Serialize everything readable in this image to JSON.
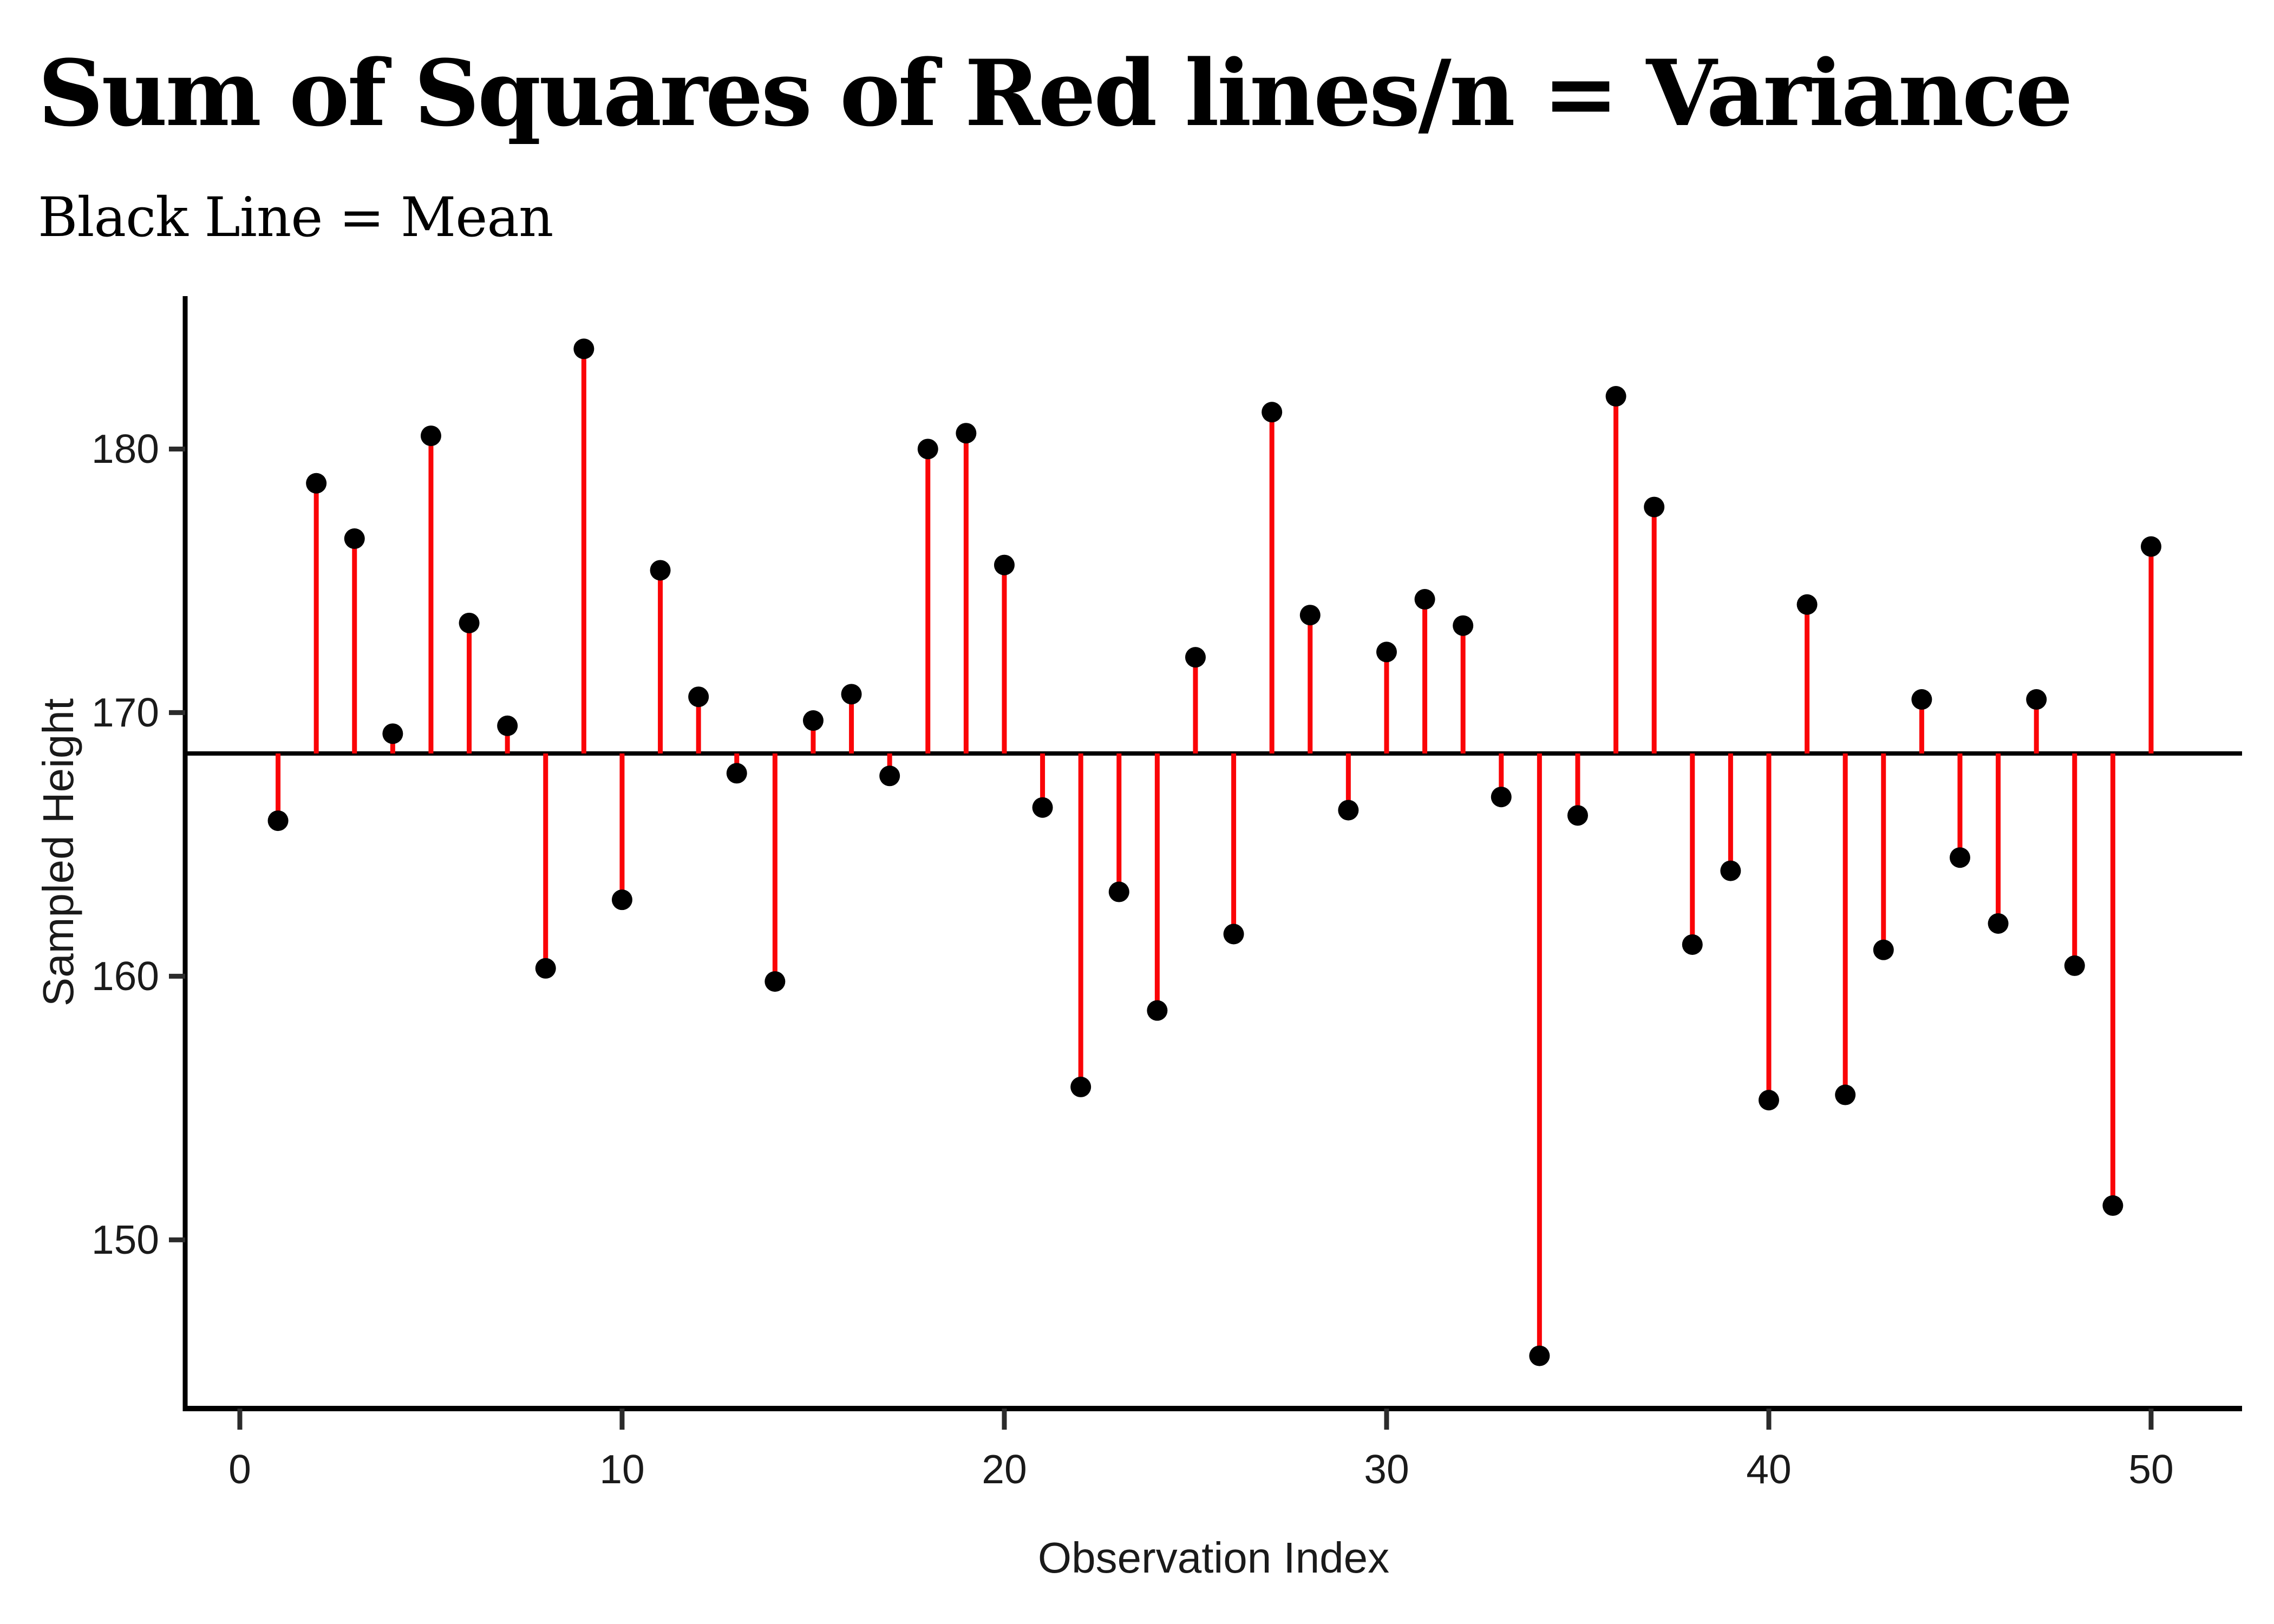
{
  "chart_data": {
    "type": "stem",
    "title": "Sum of Squares of Red lines/n = Variance",
    "subtitle": "Black Line = Mean",
    "xlabel": "Observation Index",
    "ylabel": "Sampled Height",
    "x": [
      1,
      2,
      3,
      4,
      5,
      6,
      7,
      8,
      9,
      10,
      11,
      12,
      13,
      14,
      15,
      16,
      17,
      18,
      19,
      20,
      21,
      22,
      23,
      24,
      25,
      26,
      27,
      28,
      29,
      30,
      31,
      32,
      33,
      34,
      35,
      36,
      37,
      38,
      39,
      40,
      41,
      42,
      43,
      44,
      45,
      46,
      47,
      48,
      49,
      50
    ],
    "values": [
      165.9,
      178.7,
      176.6,
      169.2,
      180.5,
      173.4,
      169.5,
      160.3,
      183.8,
      162.9,
      175.4,
      170.6,
      167.7,
      159.8,
      169.7,
      170.7,
      167.6,
      180.0,
      180.6,
      175.6,
      166.4,
      155.8,
      163.2,
      158.7,
      172.1,
      161.6,
      181.4,
      173.7,
      166.3,
      172.3,
      174.3,
      173.3,
      166.8,
      145.6,
      166.1,
      182.0,
      177.8,
      161.2,
      164.0,
      155.3,
      174.1,
      155.5,
      161.0,
      170.5,
      164.5,
      162.0,
      170.5,
      160.4,
      151.3,
      176.3
    ],
    "mean": 168.45,
    "x_ticks": [
      0,
      10,
      20,
      30,
      40,
      50
    ],
    "y_ticks": [
      150,
      160,
      170,
      180
    ],
    "xlim": [
      -1.43,
      52.38
    ],
    "ylim": [
      143.6,
      185.8
    ],
    "grid": "off",
    "legend": "none",
    "colors": {
      "stem": "#FA0407",
      "point": "#000000",
      "mean_line": "#000000",
      "axis_line": "#000000",
      "tick_mark": "#2B2B2B",
      "tick_label": "#1A1A1A",
      "axis_title": "#1A1A1A",
      "background": "#FFFFFF"
    }
  }
}
